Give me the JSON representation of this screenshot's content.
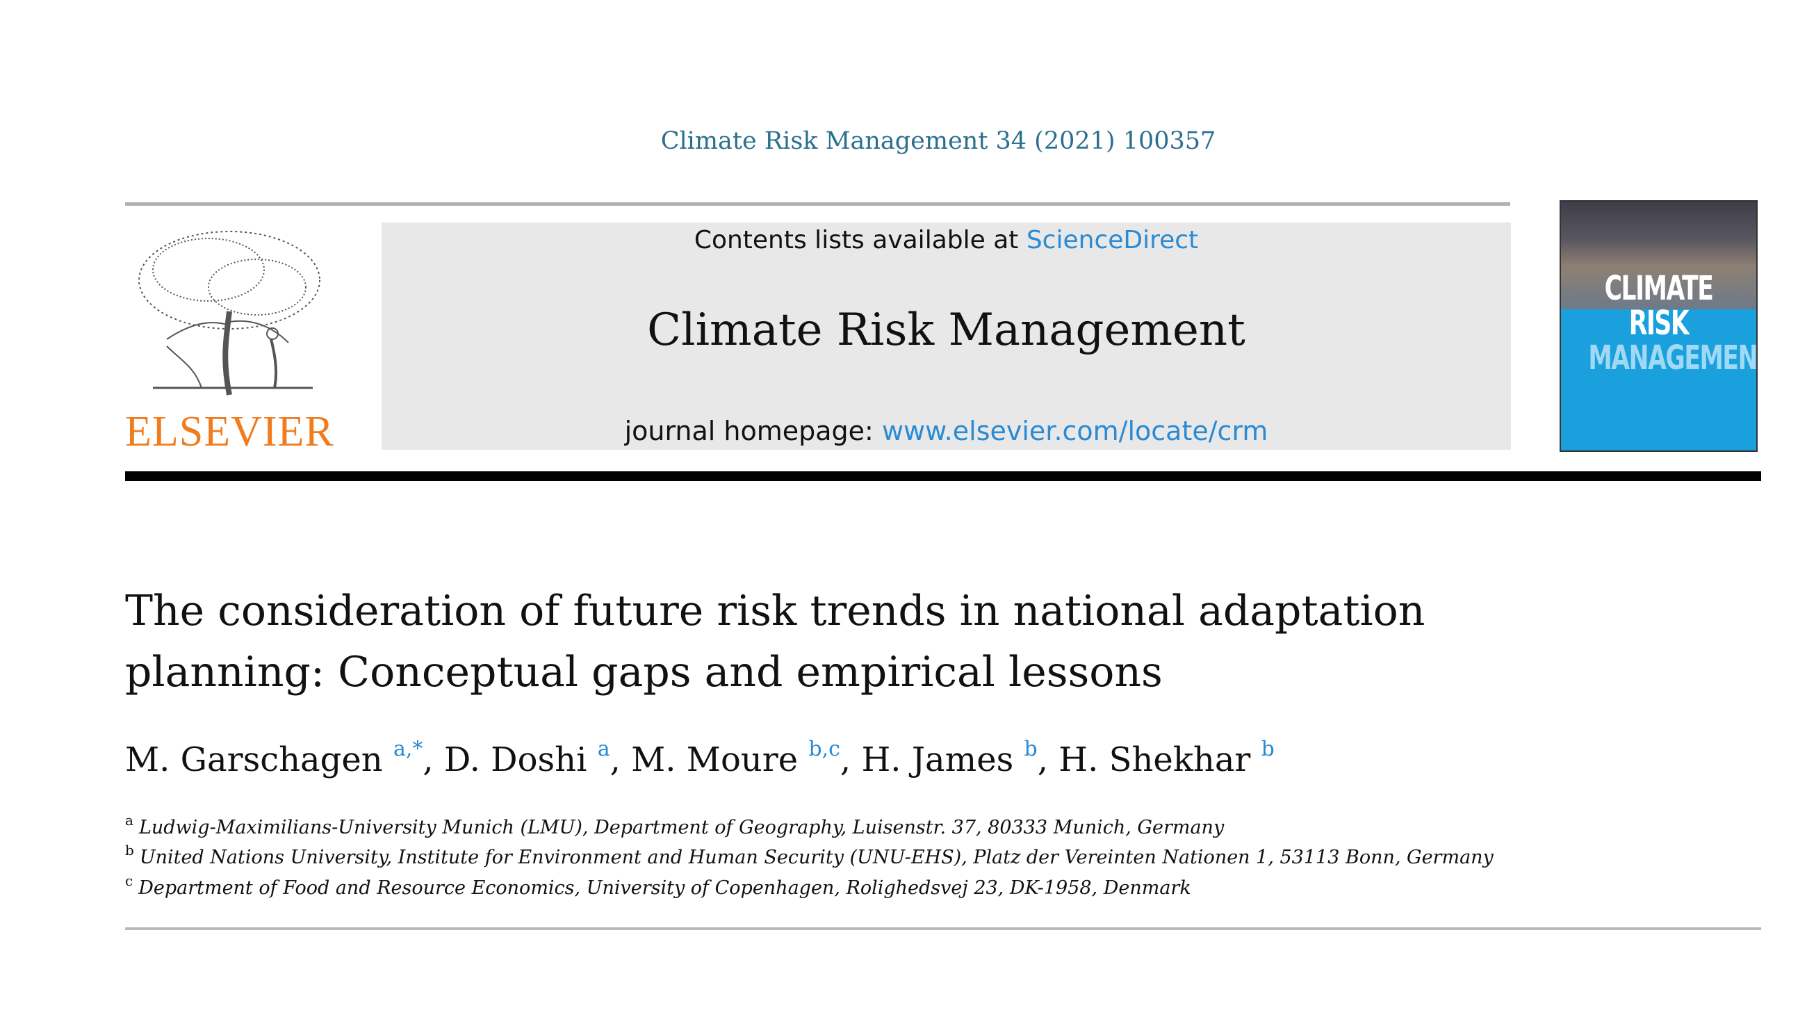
{
  "citation": "Climate Risk Management 34 (2021) 100357",
  "publisher_logo": {
    "name": "ELSEVIER",
    "color": "#f07c1e"
  },
  "header": {
    "contents_prefix": "Contents lists available at ",
    "contents_link": "ScienceDirect",
    "journal_name": "Climate Risk Management",
    "homepage_prefix": "journal homepage: ",
    "homepage_link": "www.elsevier.com/locate/crm"
  },
  "cover": {
    "line1": "CLIMATE RISK",
    "line2": "MANAGEMENT"
  },
  "title_lines": [
    "The consideration of future risk trends in national adaptation",
    "planning: Conceptual gaps and empirical lessons"
  ],
  "authors": [
    {
      "name": "M. Garschagen",
      "marks": "a,*"
    },
    {
      "name": "D. Doshi",
      "marks": "a"
    },
    {
      "name": "M. Moure",
      "marks": "b,c"
    },
    {
      "name": "H. James",
      "marks": "b"
    },
    {
      "name": "H. Shekhar",
      "marks": "b"
    }
  ],
  "affiliations": [
    {
      "mark": "a",
      "text": "Ludwig-Maximilians-University Munich (LMU), Department of Geography, Luisenstr. 37, 80333 Munich, Germany"
    },
    {
      "mark": "b",
      "text": "United Nations University, Institute for Environment and Human Security (UNU-EHS), Platz der Vereinten Nationen 1, 53113 Bonn, Germany"
    },
    {
      "mark": "c",
      "text": "Department of Food and Resource Economics, University of Copenhagen, Rolighedsvej 23, DK-1958, Denmark"
    }
  ],
  "colors": {
    "link": "#2a8ad4",
    "citation": "#2b6f8e",
    "cover_blue": "#1aa0dc"
  },
  "icons": {
    "logo_tree": "elsevier-tree-icon"
  }
}
